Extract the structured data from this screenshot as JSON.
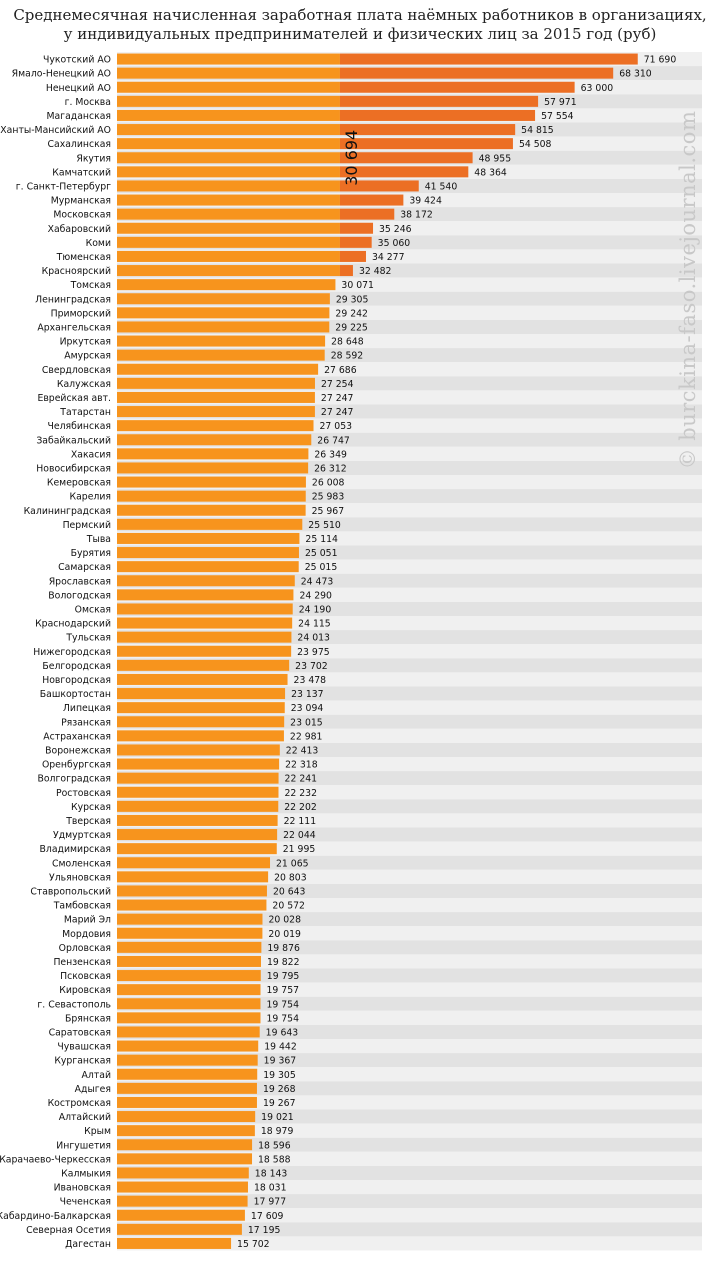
{
  "title_line1": "Среднемесячная начисленная заработная плата наёмных работников в организациях,",
  "title_line2": "у индивидуальных предпринимателей и физических лиц за 2015 год (руб)",
  "watermark": "© burckina-faso.livejournal.com",
  "colors": {
    "bar": "#f7941d",
    "bar_above_average": "#ec6f24",
    "row_stripe": "#f0f0f0",
    "row_alt": "#e2e2e2"
  },
  "chart_data": {
    "type": "bar",
    "orientation": "horizontal",
    "title": "Среднемесячная начисленная заработная плата наёмных работников в организациях, у индивидуальных предпринимателей и физических лиц за 2015 год (руб)",
    "reference_value": 30694,
    "reference_label": "30 694",
    "categories": [
      "Чукотский АО",
      "Ямало-Ненецкий АО",
      "Ненецкий АО",
      "г. Москва",
      "Магаданская",
      "Ханты-Мансийский АО",
      "Сахалинская",
      "Якутия",
      "Камчатский",
      "г. Санкт-Петербург",
      "Мурманская",
      "Московская",
      "Хабаровский",
      "Коми",
      "Тюменская",
      "Красноярский",
      "Томская",
      "Ленинградская",
      "Приморский",
      "Архангельская",
      "Иркутская",
      "Амурская",
      "Свердловская",
      "Калужская",
      "Еврейская авт.",
      "Татарстан",
      "Челябинская",
      "Забайкальский",
      "Хакасия",
      "Новосибирская",
      "Кемеровская",
      "Карелия",
      "Калининградская",
      "Пермский",
      "Тыва",
      "Бурятия",
      "Самарская",
      "Ярославская",
      "Вологодская",
      "Омская",
      "Краснодарский",
      "Тульская",
      "Нижегородская",
      "Белгородская",
      "Новгородская",
      "Башкортостан",
      "Липецкая",
      "Рязанская",
      "Астраханская",
      "Воронежская",
      "Оренбургская",
      "Волгоградская",
      "Ростовская",
      "Курская",
      "Тверская",
      "Удмуртская",
      "Владимирская",
      "Смоленская",
      "Ульяновская",
      "Ставропольский",
      "Тамбовская",
      "Марий Эл",
      "Мордовия",
      "Орловская",
      "Пензенская",
      "Псковская",
      "Кировская",
      "г. Севастополь",
      "Брянская",
      "Саратовская",
      "Чувашская",
      "Курганская",
      "Алтай",
      "Адыгея",
      "Костромская",
      "Алтайский",
      "Крым",
      "Ингушетия",
      "Карачаево-Черкесская",
      "Калмыкия",
      "Ивановская",
      "Чеченская",
      "Кабардино-Балкарская",
      "Северная Осетия",
      "Дагестан"
    ],
    "values": [
      71690,
      68310,
      63000,
      57971,
      57554,
      54815,
      54508,
      48955,
      48364,
      41540,
      39424,
      38172,
      35246,
      35060,
      34277,
      32482,
      30071,
      29305,
      29242,
      29225,
      28648,
      28592,
      27686,
      27254,
      27247,
      27247,
      27053,
      26747,
      26349,
      26312,
      26008,
      25983,
      25967,
      25510,
      25114,
      25051,
      25015,
      24473,
      24290,
      24190,
      24115,
      24013,
      23975,
      23702,
      23478,
      23137,
      23094,
      23015,
      22981,
      22413,
      22318,
      22241,
      22232,
      22202,
      22111,
      22044,
      21995,
      21065,
      20803,
      20643,
      20572,
      20028,
      20019,
      19876,
      19822,
      19795,
      19757,
      19754,
      19754,
      19643,
      19442,
      19367,
      19305,
      19268,
      19267,
      19021,
      18979,
      18596,
      18588,
      18143,
      18031,
      17977,
      17609,
      17195,
      15702
    ],
    "value_labels": [
      "71 690",
      "68 310",
      "63 000",
      "57 971",
      "57 554",
      "54 815",
      "54 508",
      "48 955",
      "48 364",
      "41 540",
      "39 424",
      "38 172",
      "35 246",
      "35 060",
      "34 277",
      "32 482",
      "30 071",
      "29 305",
      "29 242",
      "29 225",
      "28 648",
      "28 592",
      "27 686",
      "27 254",
      "27 247",
      "27 247",
      "27 053",
      "26 747",
      "26 349",
      "26 312",
      "26 008",
      "25 983",
      "25 967",
      "25 510",
      "25 114",
      "25 051",
      "25 015",
      "24 473",
      "24 290",
      "24 190",
      "24 115",
      "24 013",
      "23 975",
      "23 702",
      "23 478",
      "23 137",
      "23 094",
      "23 015",
      "22 981",
      "22 413",
      "22 318",
      "22 241",
      "22 232",
      "22 202",
      "22 111",
      "22 044",
      "21 995",
      "21 065",
      "20 803",
      "20 643",
      "20 572",
      "20 028",
      "20 019",
      "19 876",
      "19 822",
      "19 795",
      "19 757",
      "19 754",
      "19 754",
      "19 643",
      "19 442",
      "19 367",
      "19 305",
      "19 268",
      "19 267",
      "19 021",
      "18 979",
      "18 596",
      "18 588",
      "18 143",
      "18 031",
      "17 977",
      "17 609",
      "17 195",
      "15 702"
    ],
    "xlim": [
      0,
      72000
    ],
    "grid": false,
    "legend": "none"
  }
}
